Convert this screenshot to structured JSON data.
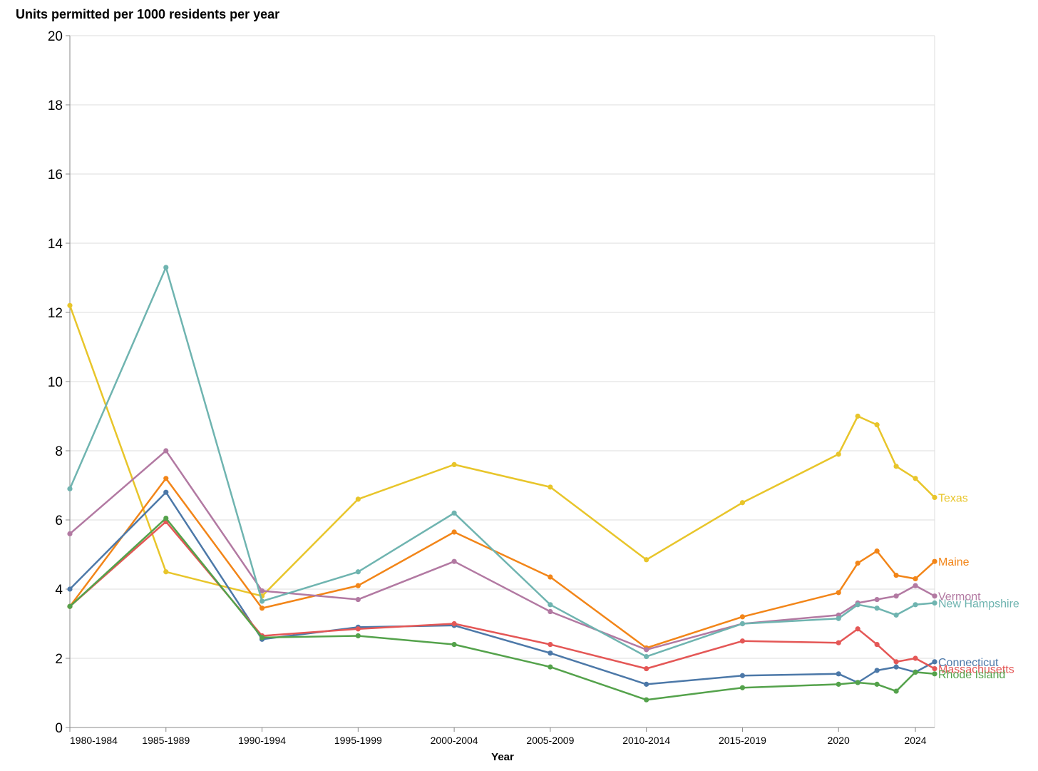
{
  "chart_data": {
    "type": "line",
    "title": "Units permitted per 1000 residents per year",
    "xlabel": "Year",
    "ylabel": "",
    "ylim": [
      0,
      20
    ],
    "y_ticks": [
      0,
      2,
      4,
      6,
      8,
      10,
      12,
      14,
      16,
      18,
      20
    ],
    "grid": true,
    "legend": "labels at line ends (right)",
    "x_ticks": [
      {
        "label": "1980-1984",
        "value": 1980
      },
      {
        "label": "1985-1989",
        "value": 1985
      },
      {
        "label": "1990-1994",
        "value": 1990
      },
      {
        "label": "1995-1999",
        "value": 1995
      },
      {
        "label": "2000-2004",
        "value": 2000
      },
      {
        "label": "2005-2009",
        "value": 2005
      },
      {
        "label": "2010-2014",
        "value": 2010
      },
      {
        "label": "2015-2019",
        "value": 2015
      },
      {
        "label": "2020",
        "value": 2020
      },
      {
        "label": "2024",
        "value": 2024
      }
    ],
    "x": [
      1980,
      1985,
      1990,
      1995,
      2000,
      2005,
      2010,
      2015,
      2020,
      2021,
      2022,
      2023,
      2024,
      2025
    ],
    "series": [
      {
        "name": "Texas",
        "color": "#e8c52a",
        "values": [
          12.2,
          4.5,
          3.8,
          6.6,
          7.6,
          6.95,
          4.85,
          6.5,
          7.9,
          9.0,
          8.75,
          7.55,
          7.2,
          6.65
        ]
      },
      {
        "name": "Maine",
        "color": "#f28518",
        "values": [
          3.5,
          7.2,
          3.45,
          4.1,
          5.65,
          4.35,
          2.3,
          3.2,
          3.9,
          4.75,
          5.1,
          4.4,
          4.3,
          4.8
        ]
      },
      {
        "name": "Vermont",
        "color": "#b279a2",
        "values": [
          5.6,
          8.0,
          3.95,
          3.7,
          4.8,
          3.35,
          2.25,
          3.0,
          3.25,
          3.6,
          3.7,
          3.8,
          4.1,
          3.8
        ]
      },
      {
        "name": "New Hampshire",
        "color": "#6fb4b0",
        "values": [
          6.9,
          13.3,
          3.65,
          4.5,
          6.2,
          3.55,
          2.05,
          3.0,
          3.15,
          3.55,
          3.45,
          3.25,
          3.55,
          3.6
        ]
      },
      {
        "name": "Connecticut",
        "color": "#4c78a8",
        "values": [
          4.0,
          6.8,
          2.55,
          2.9,
          2.95,
          2.15,
          1.25,
          1.5,
          1.55,
          1.3,
          1.65,
          1.75,
          1.6,
          1.9
        ]
      },
      {
        "name": "Massachusetts",
        "color": "#e45756",
        "values": [
          3.5,
          5.95,
          2.65,
          2.85,
          3.0,
          2.4,
          1.7,
          2.5,
          2.45,
          2.85,
          2.4,
          1.9,
          2.0,
          1.7
        ]
      },
      {
        "name": "Rhode Island",
        "color": "#54a24b",
        "values": [
          3.5,
          6.05,
          2.6,
          2.65,
          2.4,
          1.75,
          0.8,
          1.15,
          1.25,
          1.3,
          1.25,
          1.05,
          1.6,
          1.55
        ]
      }
    ]
  }
}
